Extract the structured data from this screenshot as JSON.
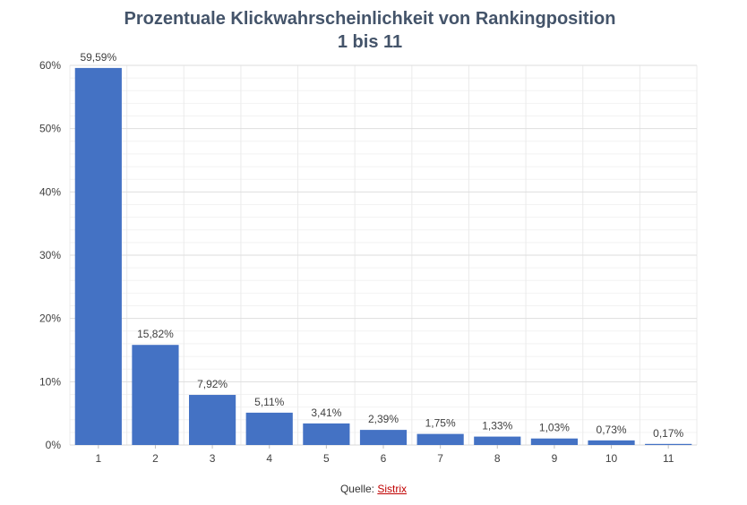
{
  "chart_data": {
    "type": "bar",
    "title_lines": [
      "Prozentuale Klickwahrscheinlichkeit  von Rankingposition",
      "1 bis 11"
    ],
    "categories": [
      "1",
      "2",
      "3",
      "4",
      "5",
      "6",
      "7",
      "8",
      "9",
      "10",
      "11"
    ],
    "values": [
      59.59,
      15.82,
      7.92,
      5.11,
      3.41,
      2.39,
      1.75,
      1.33,
      1.03,
      0.73,
      0.17
    ],
    "value_labels": [
      "59,59%",
      "15,82%",
      "7,92%",
      "5,11%",
      "3,41%",
      "2,39%",
      "1,75%",
      "1,33%",
      "1,03%",
      "0,73%",
      "0,17%"
    ],
    "yticks": [
      0,
      10,
      20,
      30,
      40,
      50,
      60
    ],
    "ytick_labels": [
      "0%",
      "10%",
      "20%",
      "30%",
      "40%",
      "50%",
      "60%"
    ],
    "ylim": [
      0,
      60
    ],
    "grid": true,
    "bar_color": "#4472C4"
  },
  "source": {
    "prefix": "Quelle:",
    "link_text": "Sistrix"
  }
}
